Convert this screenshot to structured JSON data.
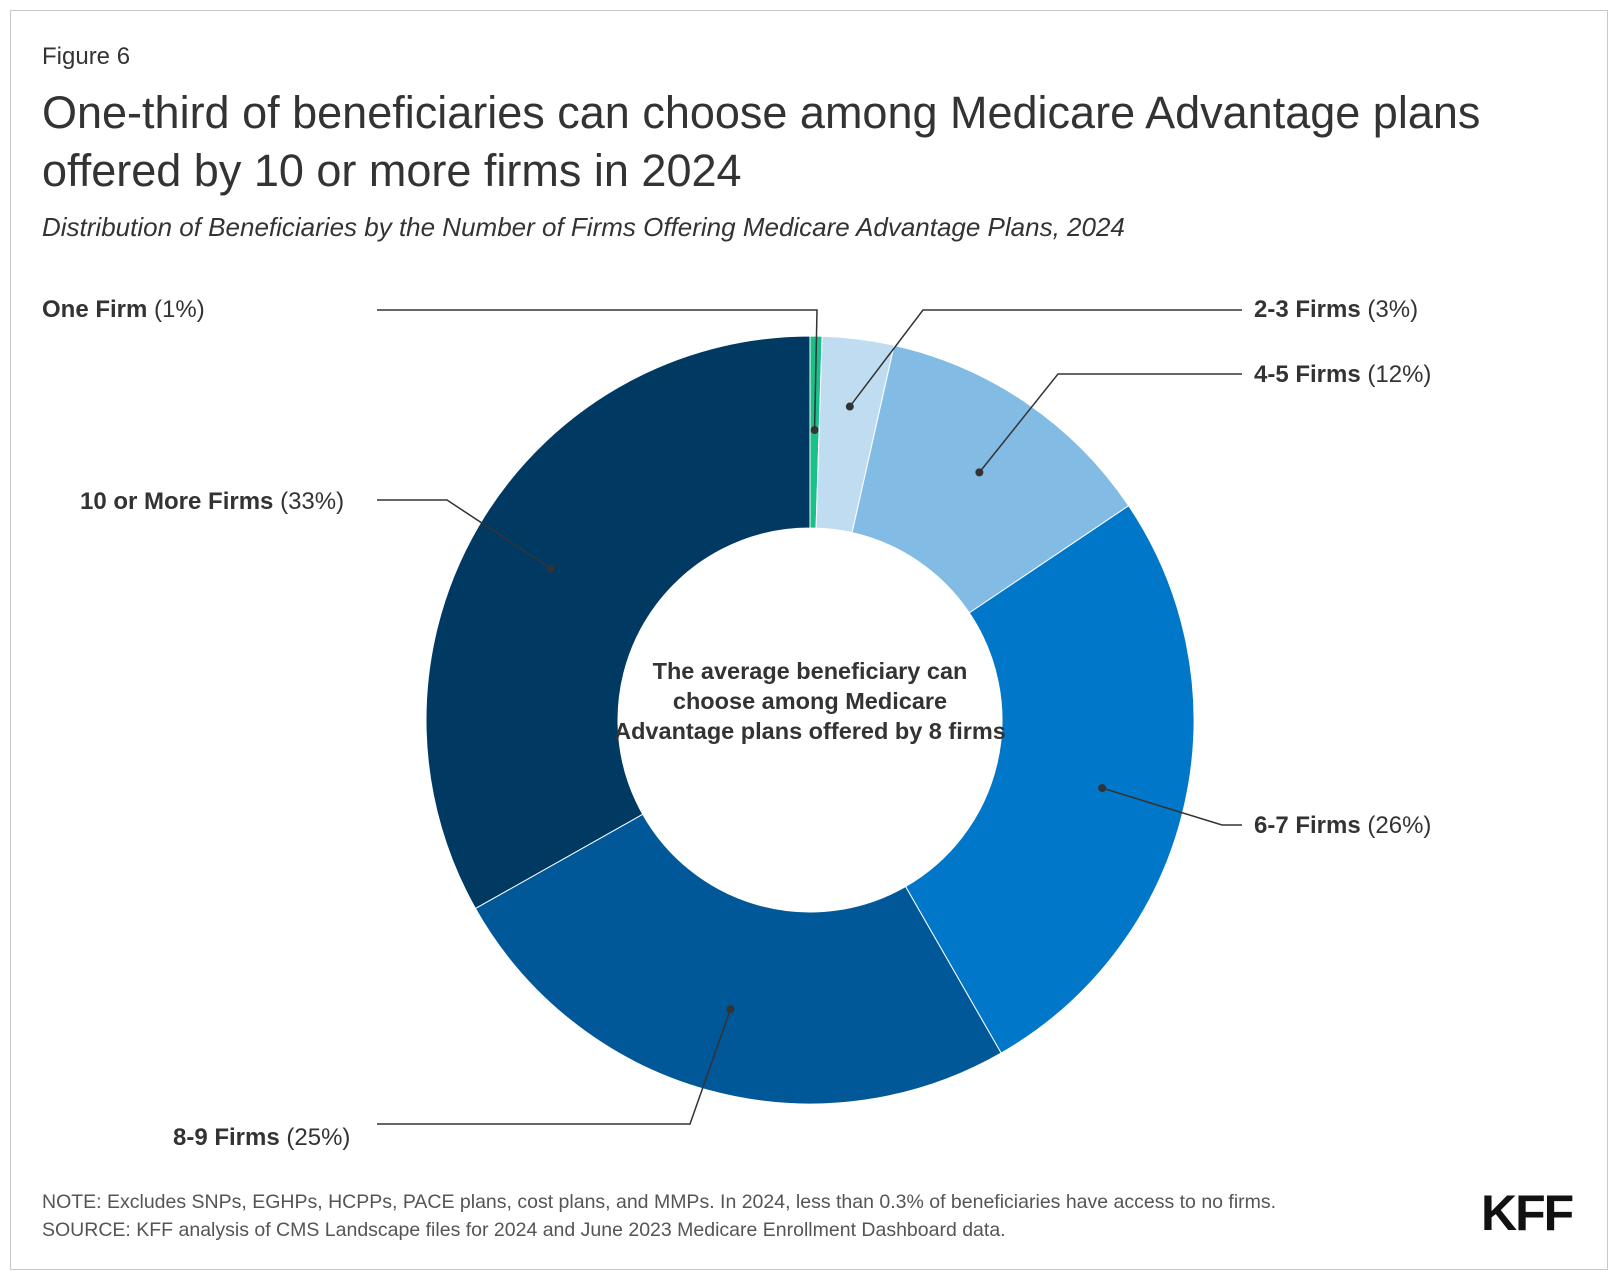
{
  "figure_label": "Figure 6",
  "title": "One-third of beneficiaries can choose among Medicare Advantage plans offered by 10 or more firms in 2024",
  "subtitle": "Distribution of Beneficiaries by the Number of Firms Offering Medicare Advantage Plans, 2024",
  "center_text": "The average beneficiary can choose among Medicare Advantage plans offered by 8 firms",
  "chart_data": {
    "type": "pie",
    "subtype": "donut",
    "slices": [
      {
        "label": "One Firm",
        "pct_label": "(1%)",
        "value": 0.5,
        "color": "#1bbf8a"
      },
      {
        "label": "2-3 Firms",
        "pct_label": "(3%)",
        "value": 3,
        "color": "#bfdcf0"
      },
      {
        "label": "4-5 Firms",
        "pct_label": "(12%)",
        "value": 12,
        "color": "#82bbe3"
      },
      {
        "label": "6-7 Firms",
        "pct_label": "(26%)",
        "value": 26,
        "color": "#0077c8"
      },
      {
        "label": "8-9 Firms",
        "pct_label": "(25%)",
        "value": 25,
        "color": "#005898"
      },
      {
        "label": "10 or More Firms",
        "pct_label": "(33%)",
        "value": 33,
        "color": "#003a63"
      }
    ]
  },
  "notes": [
    "NOTE: Excludes SNPs, EGHPs, HCPPs, PACE plans, cost plans, and MMPs. In 2024, less than 0.3% of beneficiaries have access to no firms.",
    "SOURCE: KFF analysis of CMS Landscape files for 2024 and June 2023 Medicare Enrollment Dashboard data."
  ],
  "logo_text": "KFF"
}
